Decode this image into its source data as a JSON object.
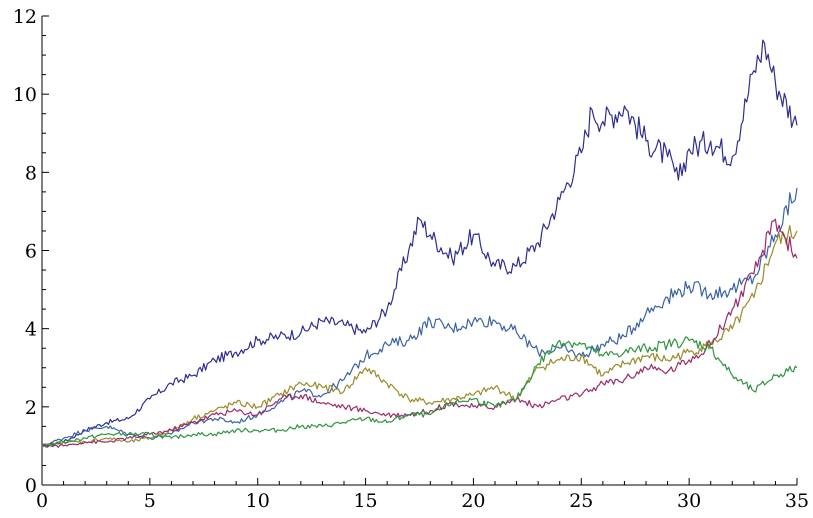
{
  "chart_data": {
    "type": "line",
    "title": "",
    "xlabel": "",
    "ylabel": "",
    "xlim": [
      0,
      35
    ],
    "ylim": [
      0,
      12
    ],
    "xticks": [
      0,
      5,
      10,
      15,
      20,
      25,
      30,
      35
    ],
    "xtick_labels": [
      "0",
      "5",
      "10",
      "15",
      "20",
      "25",
      "30",
      "35"
    ],
    "yticks": [
      0,
      2,
      4,
      6,
      8,
      10,
      12
    ],
    "ytick_labels": [
      "0",
      "2",
      "4",
      "6",
      "8",
      "10",
      "12"
    ],
    "grid": false,
    "series": [
      {
        "color": "#2e2e91",
        "points": [
          [
            0,
            1.0
          ],
          [
            1,
            1.1
          ],
          [
            2,
            1.4
          ],
          [
            3,
            1.6
          ],
          [
            4,
            1.7
          ],
          [
            5,
            2.2
          ],
          [
            6,
            2.6
          ],
          [
            7,
            2.8
          ],
          [
            8,
            3.2
          ],
          [
            9,
            3.4
          ],
          [
            10,
            3.7
          ],
          [
            11,
            3.8
          ],
          [
            12,
            3.9
          ],
          [
            13,
            4.2
          ],
          [
            14,
            4.1
          ],
          [
            15,
            3.9
          ],
          [
            16,
            4.5
          ],
          [
            17,
            6.0
          ],
          [
            17.5,
            6.8
          ],
          [
            18,
            6.4
          ],
          [
            19,
            5.8
          ],
          [
            20,
            6.4
          ],
          [
            21,
            5.6
          ],
          [
            22,
            5.6
          ],
          [
            23,
            6.2
          ],
          [
            24,
            7.3
          ],
          [
            25,
            8.5
          ],
          [
            25.5,
            9.6
          ],
          [
            26,
            9.3
          ],
          [
            27,
            9.7
          ],
          [
            28,
            8.8
          ],
          [
            29,
            8.4
          ],
          [
            29.5,
            7.8
          ],
          [
            30,
            8.6
          ],
          [
            31,
            8.8
          ],
          [
            32,
            8.4
          ],
          [
            33,
            10.6
          ],
          [
            33.5,
            11.3
          ],
          [
            34,
            10.3
          ],
          [
            35,
            9.2
          ]
        ]
      },
      {
        "color": "#3a62a6",
        "points": [
          [
            0,
            1.0
          ],
          [
            1,
            1.2
          ],
          [
            2,
            1.4
          ],
          [
            3,
            1.5
          ],
          [
            4,
            1.3
          ],
          [
            5,
            1.2
          ],
          [
            6,
            1.3
          ],
          [
            7,
            1.6
          ],
          [
            8,
            1.7
          ],
          [
            9,
            1.6
          ],
          [
            10,
            1.8
          ],
          [
            11,
            2.1
          ],
          [
            12,
            2.4
          ],
          [
            13,
            2.3
          ],
          [
            14,
            2.7
          ],
          [
            15,
            3.3
          ],
          [
            16,
            3.6
          ],
          [
            17,
            3.7
          ],
          [
            18,
            4.2
          ],
          [
            19,
            4.0
          ],
          [
            20,
            4.2
          ],
          [
            21,
            4.2
          ],
          [
            22,
            3.9
          ],
          [
            23,
            3.4
          ],
          [
            24,
            3.5
          ],
          [
            25,
            3.3
          ],
          [
            26,
            3.6
          ],
          [
            27,
            3.8
          ],
          [
            28,
            4.4
          ],
          [
            29,
            4.8
          ],
          [
            30,
            5.1
          ],
          [
            31,
            4.9
          ],
          [
            32,
            5.0
          ],
          [
            33,
            5.3
          ],
          [
            34,
            6.4
          ],
          [
            35,
            7.6
          ]
        ]
      },
      {
        "color": "#9a8a2a",
        "points": [
          [
            0,
            1.0
          ],
          [
            1,
            1.1
          ],
          [
            2,
            1.1
          ],
          [
            3,
            1.2
          ],
          [
            4,
            1.1
          ],
          [
            5,
            1.2
          ],
          [
            6,
            1.4
          ],
          [
            7,
            1.7
          ],
          [
            8,
            1.9
          ],
          [
            9,
            2.1
          ],
          [
            10,
            2.0
          ],
          [
            11,
            2.3
          ],
          [
            12,
            2.6
          ],
          [
            13,
            2.5
          ],
          [
            14,
            2.4
          ],
          [
            15,
            3.0
          ],
          [
            16,
            2.6
          ],
          [
            17,
            2.2
          ],
          [
            18,
            2.1
          ],
          [
            19,
            2.2
          ],
          [
            20,
            2.3
          ],
          [
            21,
            2.5
          ],
          [
            22,
            2.2
          ],
          [
            23,
            3.0
          ],
          [
            24,
            3.2
          ],
          [
            25,
            3.3
          ],
          [
            26,
            2.8
          ],
          [
            27,
            3.1
          ],
          [
            28,
            3.3
          ],
          [
            29,
            3.2
          ],
          [
            30,
            3.4
          ],
          [
            31,
            3.6
          ],
          [
            32,
            4.0
          ],
          [
            33,
            4.8
          ],
          [
            34,
            6.2
          ],
          [
            35,
            6.5
          ]
        ]
      },
      {
        "color": "#9b2a6c",
        "points": [
          [
            0,
            1.0
          ],
          [
            1,
            1.0
          ],
          [
            2,
            1.1
          ],
          [
            3,
            1.1
          ],
          [
            4,
            1.2
          ],
          [
            5,
            1.3
          ],
          [
            6,
            1.4
          ],
          [
            7,
            1.6
          ],
          [
            8,
            1.8
          ],
          [
            9,
            1.9
          ],
          [
            10,
            1.8
          ],
          [
            11,
            2.2
          ],
          [
            12,
            2.3
          ],
          [
            13,
            2.1
          ],
          [
            14,
            2.0
          ],
          [
            15,
            1.9
          ],
          [
            16,
            1.8
          ],
          [
            17,
            1.8
          ],
          [
            18,
            1.9
          ],
          [
            19,
            2.1
          ],
          [
            20,
            2.0
          ],
          [
            21,
            2.0
          ],
          [
            22,
            2.2
          ],
          [
            23,
            2.0
          ],
          [
            24,
            2.2
          ],
          [
            25,
            2.3
          ],
          [
            26,
            2.6
          ],
          [
            27,
            2.7
          ],
          [
            28,
            3.0
          ],
          [
            29,
            2.9
          ],
          [
            30,
            3.2
          ],
          [
            31,
            3.6
          ],
          [
            32,
            4.5
          ],
          [
            33,
            5.4
          ],
          [
            34,
            6.8
          ],
          [
            35,
            5.8
          ]
        ]
      },
      {
        "color": "#2e9440",
        "points": [
          [
            0,
            1.0
          ],
          [
            1,
            1.1
          ],
          [
            2,
            1.2
          ],
          [
            3,
            1.3
          ],
          [
            4,
            1.3
          ],
          [
            5,
            1.3
          ],
          [
            6,
            1.2
          ],
          [
            7,
            1.3
          ],
          [
            8,
            1.3
          ],
          [
            9,
            1.4
          ],
          [
            10,
            1.4
          ],
          [
            11,
            1.4
          ],
          [
            12,
            1.5
          ],
          [
            13,
            1.5
          ],
          [
            14,
            1.6
          ],
          [
            15,
            1.7
          ],
          [
            16,
            1.6
          ],
          [
            17,
            1.8
          ],
          [
            18,
            1.8
          ],
          [
            19,
            2.1
          ],
          [
            20,
            2.2
          ],
          [
            21,
            2.0
          ],
          [
            22,
            2.2
          ],
          [
            23,
            3.1
          ],
          [
            24,
            3.7
          ],
          [
            25,
            3.6
          ],
          [
            26,
            3.3
          ],
          [
            27,
            3.4
          ],
          [
            28,
            3.5
          ],
          [
            29,
            3.6
          ],
          [
            30,
            3.7
          ],
          [
            31,
            3.5
          ],
          [
            32,
            2.8
          ],
          [
            33,
            2.4
          ],
          [
            34,
            2.8
          ],
          [
            35,
            3.0
          ]
        ]
      }
    ]
  }
}
